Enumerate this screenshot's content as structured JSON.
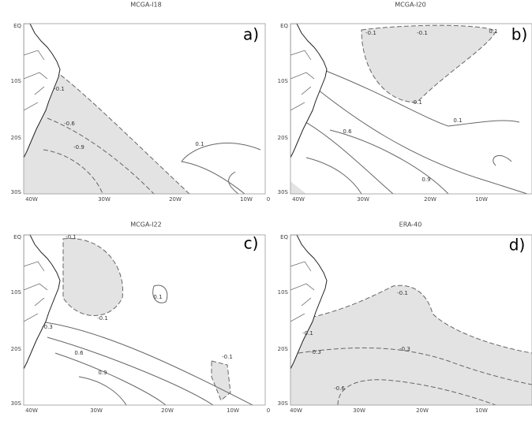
{
  "panels": [
    {
      "title": "MCGA-I18",
      "letter": "a)",
      "yticks": [
        "EQ",
        "10S",
        "20S",
        "30S"
      ],
      "xticks": [
        "40W",
        "30W",
        "20W",
        "10W",
        "0"
      ],
      "contour_labels": [
        "-0.1",
        "-0.6",
        "-0.9",
        "0.1"
      ]
    },
    {
      "title": "MCGA-I20",
      "letter": "b)",
      "yticks": [
        "EQ",
        "10S",
        "20S",
        "30S"
      ],
      "xticks": [
        "40W",
        "30W",
        "20W",
        "10W"
      ],
      "contour_labels": [
        "-0.1",
        "-0.1",
        "0.1",
        "-0.1",
        "0.6",
        "0.1",
        "0.9"
      ]
    },
    {
      "title": "MCGA-I22",
      "letter": "c)",
      "yticks": [
        "EQ",
        "10S",
        "20S",
        "30S"
      ],
      "xticks": [
        "40W",
        "30W",
        "20W",
        "10W",
        "0"
      ],
      "contour_labels": [
        "-0.1",
        "-0.1",
        "0.1",
        "-0.3",
        "0.6",
        "0.9",
        "-0.1"
      ]
    },
    {
      "title": "ERA-40",
      "letter": "d)",
      "yticks": [
        "EQ",
        "10S",
        "20S",
        "30S"
      ],
      "xticks": [
        "40W",
        "30W",
        "20W",
        "10W"
      ],
      "contour_labels": [
        "-0.1",
        "-0.1",
        "-0.3",
        "-0.3",
        "-0.6"
      ]
    }
  ]
}
